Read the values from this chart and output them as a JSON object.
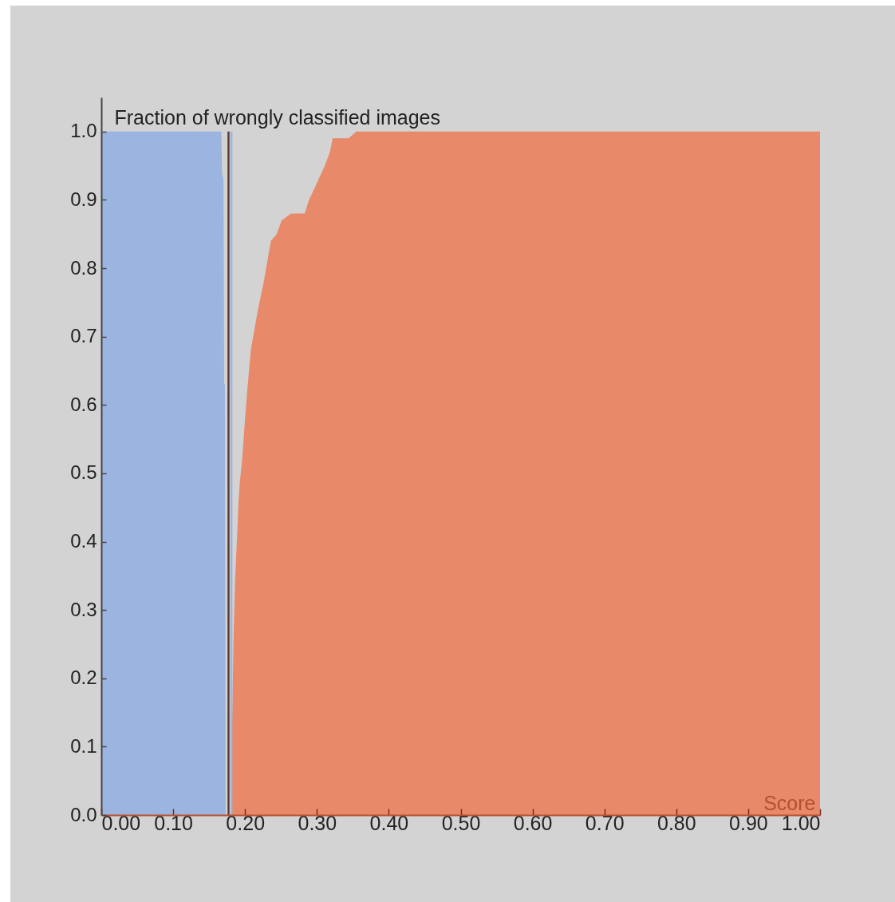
{
  "chart_data": {
    "type": "area",
    "ylabel": "Fraction of wrongly classified images",
    "xlabel": "Score",
    "xlim": [
      0,
      1
    ],
    "ylim": [
      0,
      1.05
    ],
    "xticks": [
      {
        "value": 0,
        "label": "0.00"
      },
      {
        "value": 0.1,
        "label": "0.10"
      },
      {
        "value": 0.2,
        "label": "0.20"
      },
      {
        "value": 0.3,
        "label": "0.30"
      },
      {
        "value": 0.4,
        "label": "0.40"
      },
      {
        "value": 0.5,
        "label": "0.50"
      },
      {
        "value": 0.6,
        "label": "0.60"
      },
      {
        "value": 0.7,
        "label": "0.70"
      },
      {
        "value": 0.8,
        "label": "0.80"
      },
      {
        "value": 0.9,
        "label": "0.90"
      },
      {
        "value": 1,
        "label": "1.00"
      }
    ],
    "yticks": [
      {
        "value": 0,
        "label": "0.0"
      },
      0.1,
      0.2,
      0.3,
      0.4,
      0.5,
      0.6,
      0.7,
      0.8,
      0.9,
      {
        "value": 1,
        "label": "1.0"
      }
    ],
    "series": [
      {
        "color": "#9cb4e0",
        "x": [
          0,
          0.167,
          0.168,
          0.17,
          0.171,
          0.172,
          0.173
        ],
        "values": [
          1,
          1,
          0.94,
          0.93,
          0.63,
          0.63,
          0
        ]
      },
      {
        "color": "#e8896a",
        "x": [
          0.181,
          0.182,
          0.184,
          0.186,
          0.189,
          0.191,
          0.193,
          0.196,
          0.2,
          0.203,
          0.208,
          0.213,
          0.218,
          0.226,
          0.231,
          0.236,
          0.244,
          0.251,
          0.264,
          0.283,
          0.289,
          0.298,
          0.311,
          0.318,
          0.322,
          0.344,
          0.355,
          1
        ],
        "values": [
          0,
          0.13,
          0.26,
          0.34,
          0.41,
          0.46,
          0.49,
          0.52,
          0.58,
          0.62,
          0.68,
          0.71,
          0.74,
          0.78,
          0.81,
          0.84,
          0.85,
          0.87,
          0.88,
          0.88,
          0.9,
          0.92,
          0.95,
          0.97,
          0.99,
          0.99,
          1,
          1
        ]
      }
    ],
    "ref_lines": [
      {
        "axis": "x",
        "value": 0.177,
        "color": "#5a3a30"
      },
      {
        "axis": "x",
        "value": 0.181,
        "color": "#9cb4e0"
      }
    ],
    "grid": false
  }
}
